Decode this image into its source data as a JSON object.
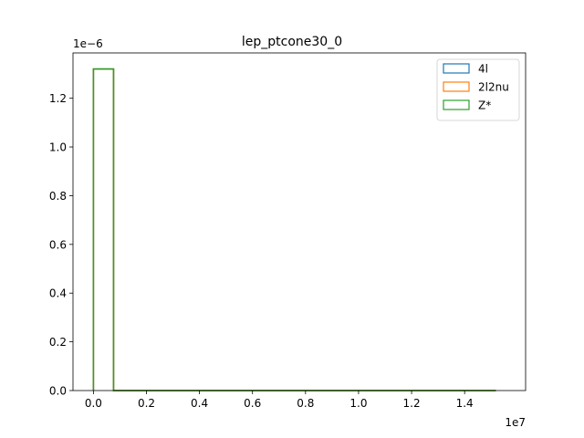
{
  "chart_data": {
    "type": "histogram",
    "title": "lep_ptcone30_0",
    "xlabel": "",
    "ylabel": "",
    "x_offset_label": "1e7",
    "y_offset_label": "1e−6",
    "x_scale": 10000000,
    "y_scale": 1e-06,
    "xlim": [
      -0.077,
      1.63
    ],
    "ylim": [
      0,
      1.386
    ],
    "x_ticks": [
      0.0,
      0.2,
      0.4,
      0.6,
      0.8,
      1.0,
      1.2,
      1.4
    ],
    "x_tick_labels": [
      "0.0",
      "0.2",
      "0.4",
      "0.6",
      "0.8",
      "1.0",
      "1.2",
      "1.4"
    ],
    "y_ticks": [
      0.0,
      0.2,
      0.4,
      0.6,
      0.8,
      1.0,
      1.2
    ],
    "y_tick_labels": [
      "0.0",
      "0.2",
      "0.4",
      "0.6",
      "0.8",
      "1.0",
      "1.2"
    ],
    "bin_edges": [
      0.0,
      0.0759,
      0.1518,
      0.2277,
      0.3036,
      0.3795,
      0.4554,
      0.5313,
      0.6072,
      0.6831,
      0.759,
      0.8349,
      0.9108,
      0.9867,
      1.0626,
      1.1385,
      1.2144,
      1.2903,
      1.3662,
      1.4421,
      1.518
    ],
    "legend_position": "top-right",
    "grid": false,
    "series": [
      {
        "name": "4l",
        "color": "#1f77b4",
        "values": [
          1.32,
          0,
          0,
          0,
          0,
          0,
          0,
          0,
          0,
          0,
          0,
          0,
          0,
          0,
          0,
          0,
          0,
          0,
          0,
          0
        ]
      },
      {
        "name": "2l2nu",
        "color": "#ff7f0e",
        "values": [
          1.32,
          0,
          0,
          0,
          0,
          0,
          0,
          0,
          0,
          0,
          0,
          0,
          0,
          0,
          0,
          0,
          0,
          0,
          0,
          0
        ]
      },
      {
        "name": "Z*",
        "color": "#2ca02c",
        "values": [
          1.32,
          0,
          0,
          0,
          0,
          0,
          0,
          0,
          0,
          0,
          0,
          0,
          0,
          0,
          0,
          0,
          0,
          0,
          0,
          0
        ]
      }
    ]
  }
}
